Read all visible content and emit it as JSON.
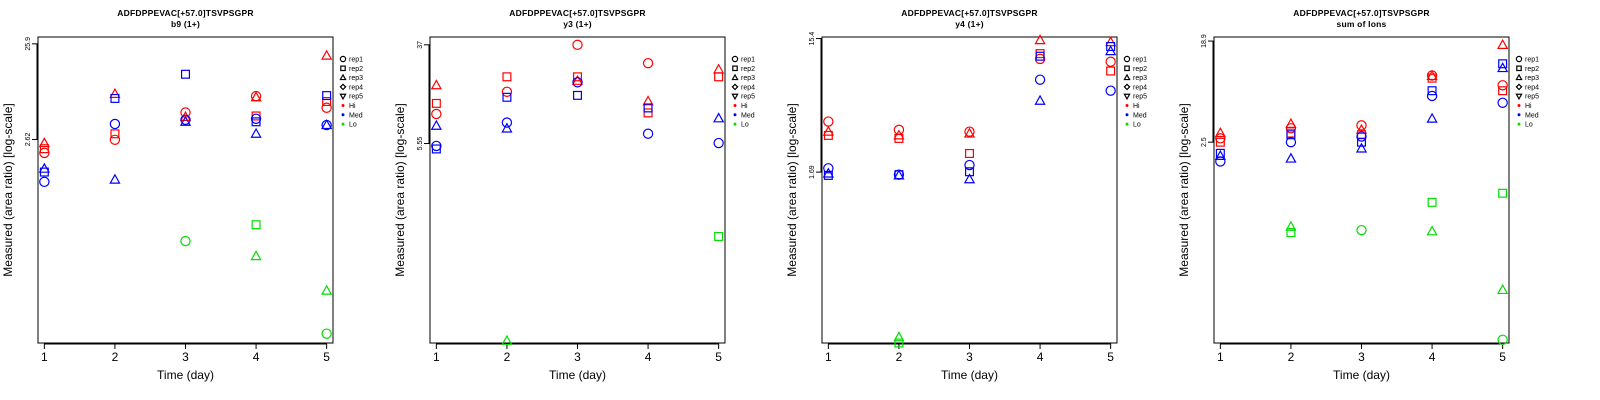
{
  "chart_data": [
    {
      "type": "scatter",
      "title": "ADFDPPEVAC[+57.0]TSVPSGPR",
      "subtitle": "b9 (1+)",
      "xlabel": "Time (day)",
      "ylabel": "Measured (area ratio) [log-scale]",
      "x_ticks": [
        "1",
        "2",
        "3",
        "4",
        "5"
      ],
      "y_ticks": [
        "2.62",
        "25.9"
      ],
      "y_scale": "log",
      "ylim": [
        0.02,
        30.5
      ],
      "series": [
        {
          "name": "Hi",
          "color": "#ff0000",
          "points": [
            {
              "x": 1,
              "y": 2.4,
              "shape": "triangle"
            },
            {
              "x": 1,
              "y": 2.1,
              "shape": "square"
            },
            {
              "x": 1,
              "y": 1.9,
              "shape": "circle"
            },
            {
              "x": 2,
              "y": 2.6,
              "shape": "circle"
            },
            {
              "x": 2,
              "y": 3.0,
              "shape": "square"
            },
            {
              "x": 2,
              "y": 7.8,
              "shape": "triangle"
            },
            {
              "x": 3,
              "y": 5.0,
              "shape": "circle"
            },
            {
              "x": 3,
              "y": 4.5,
              "shape": "triangle"
            },
            {
              "x": 4,
              "y": 7.4,
              "shape": "circle"
            },
            {
              "x": 4,
              "y": 7.2,
              "shape": "triangle"
            },
            {
              "x": 4,
              "y": 4.6,
              "shape": "square"
            },
            {
              "x": 5,
              "y": 19.5,
              "shape": "triangle"
            },
            {
              "x": 5,
              "y": 6.5,
              "shape": "square"
            },
            {
              "x": 5,
              "y": 5.6,
              "shape": "circle"
            }
          ]
        },
        {
          "name": "Med",
          "color": "#0000ff",
          "points": [
            {
              "x": 1,
              "y": 1.3,
              "shape": "triangle"
            },
            {
              "x": 1,
              "y": 1.2,
              "shape": "square"
            },
            {
              "x": 1,
              "y": 0.95,
              "shape": "circle"
            },
            {
              "x": 2,
              "y": 1.0,
              "shape": "triangle"
            },
            {
              "x": 2,
              "y": 3.8,
              "shape": "circle"
            },
            {
              "x": 2,
              "y": 7.0,
              "shape": "square"
            },
            {
              "x": 3,
              "y": 12.5,
              "shape": "square"
            },
            {
              "x": 3,
              "y": 4.2,
              "shape": "circle"
            },
            {
              "x": 3,
              "y": 4.0,
              "shape": "triangle"
            },
            {
              "x": 4,
              "y": 4.3,
              "shape": "circle"
            },
            {
              "x": 4,
              "y": 4.0,
              "shape": "square"
            },
            {
              "x": 4,
              "y": 3.0,
              "shape": "triangle"
            },
            {
              "x": 5,
              "y": 7.5,
              "shape": "square"
            },
            {
              "x": 5,
              "y": 3.7,
              "shape": "circle"
            },
            {
              "x": 5,
              "y": 3.7,
              "shape": "triangle"
            }
          ]
        },
        {
          "name": "Lo",
          "color": "#00dd00",
          "points": [
            {
              "x": 3,
              "y": 0.23,
              "shape": "circle"
            },
            {
              "x": 4,
              "y": 0.34,
              "shape": "square"
            },
            {
              "x": 4,
              "y": 0.16,
              "shape": "triangle"
            },
            {
              "x": 5,
              "y": 0.07,
              "shape": "triangle"
            },
            {
              "x": 5,
              "y": 0.025,
              "shape": "circle"
            }
          ]
        }
      ]
    },
    {
      "type": "scatter",
      "title": "ADFDPPEVAC[+57.0]TSVPSGPR",
      "subtitle": "y3 (1+)",
      "xlabel": "Time (day)",
      "ylabel": "Measured (area ratio) [log-scale]",
      "x_ticks": [
        "1",
        "2",
        "3",
        "4",
        "5"
      ],
      "y_ticks": [
        "5.55",
        "37"
      ],
      "y_scale": "log",
      "ylim": [
        0.12,
        43
      ],
      "series": [
        {
          "name": "Hi",
          "color": "#ff0000",
          "points": [
            {
              "x": 1,
              "y": 17.0,
              "shape": "triangle"
            },
            {
              "x": 1,
              "y": 12.0,
              "shape": "square"
            },
            {
              "x": 1,
              "y": 9.8,
              "shape": "circle"
            },
            {
              "x": 2,
              "y": 20.0,
              "shape": "square"
            },
            {
              "x": 2,
              "y": 15.0,
              "shape": "circle"
            },
            {
              "x": 3,
              "y": 37.0,
              "shape": "circle"
            },
            {
              "x": 3,
              "y": 20.0,
              "shape": "square"
            },
            {
              "x": 3,
              "y": 18.5,
              "shape": "triangle"
            },
            {
              "x": 4,
              "y": 26.0,
              "shape": "circle"
            },
            {
              "x": 4,
              "y": 12.5,
              "shape": "triangle"
            },
            {
              "x": 4,
              "y": 10.0,
              "shape": "square"
            },
            {
              "x": 5,
              "y": 23.0,
              "shape": "triangle"
            },
            {
              "x": 5,
              "y": 20.0,
              "shape": "square"
            }
          ]
        },
        {
          "name": "Med",
          "color": "#0000ff",
          "points": [
            {
              "x": 1,
              "y": 5.3,
              "shape": "circle"
            },
            {
              "x": 1,
              "y": 7.8,
              "shape": "triangle"
            },
            {
              "x": 1,
              "y": 5.0,
              "shape": "square"
            },
            {
              "x": 2,
              "y": 8.3,
              "shape": "circle"
            },
            {
              "x": 2,
              "y": 7.4,
              "shape": "triangle"
            },
            {
              "x": 2,
              "y": 13.5,
              "shape": "square"
            },
            {
              "x": 3,
              "y": 14.0,
              "shape": "square"
            },
            {
              "x": 3,
              "y": 18.0,
              "shape": "circle"
            },
            {
              "x": 4,
              "y": 11.0,
              "shape": "square"
            },
            {
              "x": 4,
              "y": 6.7,
              "shape": "circle"
            },
            {
              "x": 5,
              "y": 9.0,
              "shape": "triangle"
            },
            {
              "x": 5,
              "y": 5.6,
              "shape": "circle"
            }
          ]
        },
        {
          "name": "Lo",
          "color": "#00dd00",
          "points": [
            {
              "x": 2,
              "y": 0.125,
              "shape": "triangle"
            },
            {
              "x": 5,
              "y": 0.93,
              "shape": "square"
            }
          ]
        }
      ]
    },
    {
      "type": "scatter",
      "title": "ADFDPPEVAC[+57.0]TSVPSGPR",
      "subtitle": "y4 (1+)",
      "xlabel": "Time (day)",
      "ylabel": "Measured (area ratio) [log-scale]",
      "x_ticks": [
        "1",
        "2",
        "3",
        "4",
        "5"
      ],
      "y_ticks": [
        "1.69",
        "15.4"
      ],
      "y_scale": "log",
      "ylim": [
        0.1,
        15.8
      ],
      "series": [
        {
          "name": "Hi",
          "color": "#ff0000",
          "points": [
            {
              "x": 1,
              "y": 3.9,
              "shape": "circle"
            },
            {
              "x": 1,
              "y": 3.3,
              "shape": "triangle"
            },
            {
              "x": 1,
              "y": 3.1,
              "shape": "square"
            },
            {
              "x": 2,
              "y": 3.4,
              "shape": "circle"
            },
            {
              "x": 2,
              "y": 3.1,
              "shape": "triangle"
            },
            {
              "x": 2,
              "y": 2.95,
              "shape": "square"
            },
            {
              "x": 3,
              "y": 3.3,
              "shape": "circle"
            },
            {
              "x": 3,
              "y": 3.2,
              "shape": "triangle"
            },
            {
              "x": 3,
              "y": 2.3,
              "shape": "square"
            },
            {
              "x": 4,
              "y": 15.0,
              "shape": "triangle"
            },
            {
              "x": 4,
              "y": 12.0,
              "shape": "square"
            },
            {
              "x": 4,
              "y": 11.0,
              "shape": "circle"
            },
            {
              "x": 5,
              "y": 14.5,
              "shape": "triangle"
            },
            {
              "x": 5,
              "y": 10.5,
              "shape": "circle"
            },
            {
              "x": 5,
              "y": 9.0,
              "shape": "square"
            }
          ]
        },
        {
          "name": "Med",
          "color": "#0000ff",
          "points": [
            {
              "x": 1,
              "y": 1.8,
              "shape": "circle"
            },
            {
              "x": 1,
              "y": 1.65,
              "shape": "triangle"
            },
            {
              "x": 1,
              "y": 1.6,
              "shape": "square"
            },
            {
              "x": 2,
              "y": 1.62,
              "shape": "circle"
            },
            {
              "x": 2,
              "y": 1.6,
              "shape": "triangle"
            },
            {
              "x": 2,
              "y": 1.62,
              "shape": "square"
            },
            {
              "x": 3,
              "y": 1.9,
              "shape": "circle"
            },
            {
              "x": 3,
              "y": 1.5,
              "shape": "triangle"
            },
            {
              "x": 3,
              "y": 1.7,
              "shape": "square"
            },
            {
              "x": 4,
              "y": 11.5,
              "shape": "square"
            },
            {
              "x": 4,
              "y": 7.8,
              "shape": "circle"
            },
            {
              "x": 4,
              "y": 5.5,
              "shape": "triangle"
            },
            {
              "x": 5,
              "y": 13.5,
              "shape": "square"
            },
            {
              "x": 5,
              "y": 12.5,
              "shape": "triangle"
            },
            {
              "x": 5,
              "y": 6.5,
              "shape": "circle"
            }
          ]
        },
        {
          "name": "Lo",
          "color": "#00dd00",
          "points": [
            {
              "x": 2,
              "y": 0.11,
              "shape": "triangle"
            },
            {
              "x": 2,
              "y": 0.1,
              "shape": "square"
            }
          ]
        }
      ]
    },
    {
      "type": "scatter",
      "title": "ADFDPPEVAC[+57.0]TSVPSGPR",
      "subtitle": "sum of Ions",
      "xlabel": "Time (day)",
      "ylabel": "Measured (area ratio) [log-scale]",
      "x_ticks": [
        "1",
        "2",
        "3",
        "4",
        "5"
      ],
      "y_ticks": [
        "2.5",
        "18.9"
      ],
      "y_scale": "log",
      "ylim": [
        0.045,
        20.5
      ],
      "series": [
        {
          "name": "Hi",
          "color": "#ff0000",
          "points": [
            {
              "x": 1,
              "y": 3.0,
              "shape": "triangle"
            },
            {
              "x": 1,
              "y": 2.7,
              "shape": "circle"
            },
            {
              "x": 1,
              "y": 2.5,
              "shape": "square"
            },
            {
              "x": 2,
              "y": 3.6,
              "shape": "triangle"
            },
            {
              "x": 2,
              "y": 3.3,
              "shape": "circle"
            },
            {
              "x": 2,
              "y": 3.0,
              "shape": "square"
            },
            {
              "x": 3,
              "y": 3.5,
              "shape": "circle"
            },
            {
              "x": 3,
              "y": 3.2,
              "shape": "triangle"
            },
            {
              "x": 3,
              "y": 2.9,
              "shape": "square"
            },
            {
              "x": 4,
              "y": 9.5,
              "shape": "circle"
            },
            {
              "x": 4,
              "y": 9.4,
              "shape": "triangle"
            },
            {
              "x": 4,
              "y": 9.0,
              "shape": "square"
            },
            {
              "x": 5,
              "y": 17.5,
              "shape": "triangle"
            },
            {
              "x": 5,
              "y": 7.8,
              "shape": "circle"
            },
            {
              "x": 5,
              "y": 7.0,
              "shape": "square"
            }
          ]
        },
        {
          "name": "Med",
          "color": "#0000ff",
          "points": [
            {
              "x": 1,
              "y": 2.0,
              "shape": "square"
            },
            {
              "x": 1,
              "y": 1.9,
              "shape": "triangle"
            },
            {
              "x": 1,
              "y": 1.7,
              "shape": "circle"
            },
            {
              "x": 2,
              "y": 2.9,
              "shape": "square"
            },
            {
              "x": 2,
              "y": 2.5,
              "shape": "circle"
            },
            {
              "x": 2,
              "y": 1.8,
              "shape": "triangle"
            },
            {
              "x": 3,
              "y": 2.8,
              "shape": "circle"
            },
            {
              "x": 3,
              "y": 2.5,
              "shape": "square"
            },
            {
              "x": 3,
              "y": 2.2,
              "shape": "triangle"
            },
            {
              "x": 4,
              "y": 7.0,
              "shape": "square"
            },
            {
              "x": 4,
              "y": 6.3,
              "shape": "circle"
            },
            {
              "x": 4,
              "y": 4.0,
              "shape": "triangle"
            },
            {
              "x": 5,
              "y": 12.0,
              "shape": "square"
            },
            {
              "x": 5,
              "y": 11.0,
              "shape": "triangle"
            },
            {
              "x": 5,
              "y": 5.5,
              "shape": "circle"
            }
          ]
        },
        {
          "name": "Lo",
          "color": "#00dd00",
          "points": [
            {
              "x": 2,
              "y": 0.46,
              "shape": "triangle"
            },
            {
              "x": 2,
              "y": 0.41,
              "shape": "square"
            },
            {
              "x": 3,
              "y": 0.43,
              "shape": "circle"
            },
            {
              "x": 4,
              "y": 0.75,
              "shape": "square"
            },
            {
              "x": 4,
              "y": 0.42,
              "shape": "triangle"
            },
            {
              "x": 5,
              "y": 0.9,
              "shape": "square"
            },
            {
              "x": 5,
              "y": 0.13,
              "shape": "triangle"
            },
            {
              "x": 5,
              "y": 0.048,
              "shape": "circle"
            }
          ]
        }
      ]
    }
  ],
  "legend": {
    "placement": "right",
    "items": [
      {
        "label": "rep1",
        "symbol": "circle",
        "color": "#000000"
      },
      {
        "label": "rep2",
        "symbol": "square",
        "color": "#000000"
      },
      {
        "label": "rep3",
        "symbol": "triangle",
        "color": "#000000"
      },
      {
        "label": "rep4",
        "symbol": "diamond",
        "color": "#000000"
      },
      {
        "label": "rep5",
        "symbol": "triangle-down",
        "color": "#000000"
      },
      {
        "label": "Hi",
        "symbol": "dot",
        "color": "#ff0000"
      },
      {
        "label": "Med",
        "symbol": "dot",
        "color": "#0000ff"
      },
      {
        "label": "Lo",
        "symbol": "dot",
        "color": "#00dd00"
      }
    ]
  }
}
